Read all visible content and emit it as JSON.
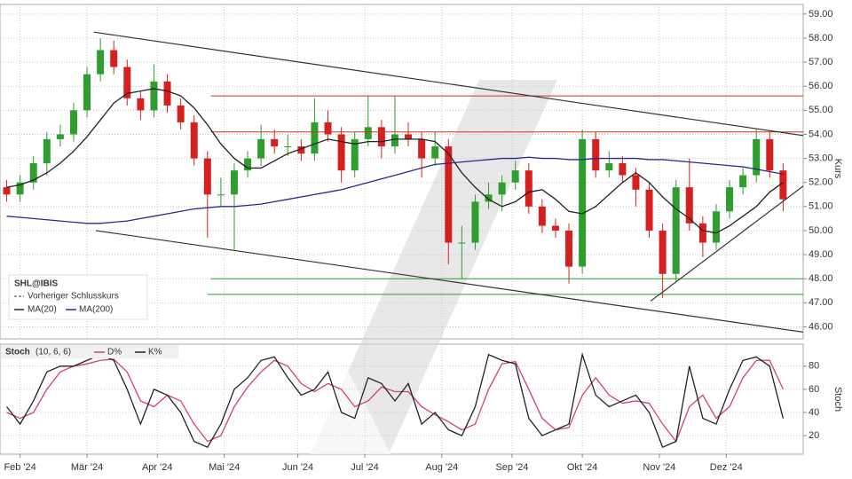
{
  "chart_data": [
    {
      "type": "candlestick",
      "legend_title": "SHL@IBIS",
      "legend_entries": [
        "Vorheriger Schlusskurs"
      ],
      "y_label": "Kurs",
      "xlim": [
        0,
        240
      ],
      "ylim": [
        45.5,
        59.4
      ],
      "yticks": [
        {
          "value": 46,
          "label": "46.00"
        },
        {
          "value": 47,
          "label": "47.00"
        },
        {
          "value": 48,
          "label": "48.00"
        },
        {
          "value": 49,
          "label": "49.00"
        },
        {
          "value": 50,
          "label": "50.00"
        },
        {
          "value": 51,
          "label": "51.00"
        },
        {
          "value": 52,
          "label": "52.00"
        },
        {
          "value": 53,
          "label": "53.00"
        },
        {
          "value": 54,
          "label": "54.00"
        },
        {
          "value": 55,
          "label": "55.00"
        },
        {
          "value": 56,
          "label": "56.00"
        },
        {
          "value": 57,
          "label": "57.00"
        },
        {
          "value": 58,
          "label": "58.00"
        },
        {
          "value": 59,
          "label": "59.00"
        }
      ],
      "grid": true,
      "up_color": "#2e9e2e",
      "down_color": "#d62020",
      "x": [
        2,
        6,
        10,
        14,
        18,
        22,
        26,
        30,
        34,
        38,
        42,
        46,
        50,
        54,
        58,
        62,
        66,
        70,
        74,
        78,
        82,
        86,
        90,
        94,
        98,
        102,
        106,
        110,
        114,
        118,
        122,
        126,
        130,
        134,
        138,
        142,
        146,
        150,
        154,
        158,
        162,
        166,
        170,
        174,
        178,
        182,
        186,
        190,
        194,
        198,
        202,
        206,
        210,
        214,
        218,
        222,
        226,
        230,
        234
      ],
      "open": [
        51.8,
        51.5,
        52.0,
        52.8,
        53.8,
        54.0,
        55.0,
        56.5,
        57.5,
        56.8,
        55.5,
        55.0,
        56.2,
        55.2,
        54.5,
        53.0,
        51.5,
        51.5,
        52.5,
        53.0,
        53.8,
        53.5,
        53.5,
        53.2,
        54.5,
        54.0,
        52.5,
        53.8,
        54.3,
        53.5,
        54.0,
        53.8,
        53.0,
        53.5,
        49.5,
        49.5,
        51.2,
        51.5,
        52.0,
        52.5,
        51.0,
        50.2,
        50.0,
        48.5,
        53.8,
        52.5,
        52.8,
        52.3,
        51.7,
        50.0,
        48.2,
        51.8,
        50.3,
        49.5,
        50.8,
        51.8,
        52.3,
        53.8,
        52.5
      ],
      "high": [
        52.1,
        52.3,
        53.1,
        54.1,
        54.4,
        55.3,
        56.8,
        58.0,
        57.9,
        57.1,
        55.8,
        56.9,
        56.5,
        55.5,
        54.8,
        53.3,
        52.2,
        52.8,
        53.3,
        54.4,
        54.2,
        54.0,
        53.8,
        55.5,
        55.0,
        54.3,
        54.1,
        55.6,
        54.6,
        55.6,
        54.5,
        54.1,
        54.1,
        53.8,
        50.2,
        51.5,
        52.0,
        52.3,
        52.9,
        52.8,
        51.3,
        50.5,
        50.3,
        54.2,
        54.1,
        53.3,
        53.1,
        52.6,
        52.0,
        50.3,
        52.1,
        53.0,
        50.6,
        51.1,
        52.1,
        52.6,
        54.2,
        54.1,
        52.8
      ],
      "low": [
        51.2,
        51.2,
        51.7,
        52.3,
        53.5,
        53.7,
        54.7,
        56.2,
        56.5,
        55.2,
        54.6,
        54.7,
        54.9,
        54.2,
        52.7,
        49.7,
        51.0,
        49.2,
        52.2,
        52.7,
        53.2,
        53.1,
        52.9,
        52.9,
        53.7,
        52.0,
        52.2,
        53.5,
        53.0,
        53.2,
        53.5,
        52.2,
        52.7,
        48.6,
        48.0,
        49.2,
        50.9,
        50.8,
        51.7,
        50.7,
        49.9,
        49.7,
        47.8,
        48.2,
        52.2,
        52.2,
        52.0,
        51.0,
        49.7,
        47.2,
        47.9,
        50.0,
        48.9,
        49.2,
        50.5,
        51.5,
        52.0,
        52.2,
        50.8
      ],
      "close": [
        51.5,
        52.0,
        52.8,
        53.8,
        54.0,
        55.0,
        56.5,
        57.5,
        56.8,
        55.5,
        55.0,
        56.2,
        55.2,
        54.5,
        53.0,
        51.5,
        51.5,
        52.5,
        53.0,
        53.8,
        53.5,
        53.5,
        53.2,
        54.5,
        54.0,
        52.5,
        53.8,
        54.3,
        53.5,
        54.0,
        53.8,
        53.0,
        53.5,
        49.5,
        49.5,
        51.2,
        51.5,
        52.0,
        52.5,
        51.0,
        50.2,
        50.0,
        48.5,
        53.8,
        52.5,
        52.8,
        52.3,
        51.7,
        50.0,
        48.2,
        51.8,
        50.3,
        49.5,
        50.8,
        51.8,
        52.3,
        53.8,
        52.5,
        51.3
      ],
      "series": [
        {
          "name": "MA(20)",
          "color": "#222222",
          "values": [
            51.8,
            51.9,
            52.1,
            52.4,
            52.8,
            53.3,
            53.9,
            54.6,
            55.3,
            55.7,
            55.8,
            55.9,
            55.8,
            55.6,
            55.1,
            54.4,
            53.6,
            53.0,
            52.6,
            52.6,
            52.9,
            53.2,
            53.4,
            53.6,
            53.8,
            53.7,
            53.6,
            53.7,
            53.7,
            53.8,
            53.8,
            53.8,
            53.7,
            53.2,
            52.4,
            51.8,
            51.3,
            51.0,
            51.2,
            51.6,
            51.7,
            51.3,
            50.8,
            50.7,
            51.0,
            51.5,
            52.0,
            52.4,
            52.0,
            51.4,
            50.9,
            50.5,
            50.0,
            49.9,
            50.2,
            50.6,
            51.0,
            51.6,
            52.0
          ]
        },
        {
          "name": "MA(200)",
          "color": "#2a2a8a",
          "values": [
            50.6,
            50.55,
            50.5,
            50.45,
            50.4,
            50.35,
            50.3,
            50.3,
            50.35,
            50.4,
            50.5,
            50.6,
            50.7,
            50.8,
            50.9,
            50.95,
            51.0,
            51.0,
            51.05,
            51.1,
            51.2,
            51.3,
            51.4,
            51.5,
            51.6,
            51.7,
            51.85,
            52.0,
            52.15,
            52.3,
            52.45,
            52.6,
            52.75,
            52.8,
            52.85,
            52.9,
            52.95,
            53.0,
            53.0,
            53.05,
            53.0,
            53.0,
            52.95,
            52.95,
            53.0,
            53.0,
            53.0,
            53.0,
            52.95,
            52.95,
            52.9,
            52.85,
            52.8,
            52.75,
            52.7,
            52.65,
            52.55,
            52.45,
            52.35
          ]
        }
      ],
      "trendlines": [
        {
          "x": [
            28,
            240
          ],
          "y": [
            58.25,
            53.95
          ],
          "color": "#333333"
        },
        {
          "x": [
            28.6,
            240
          ],
          "y": [
            50.0,
            45.78
          ],
          "color": "#333333"
        },
        {
          "x": [
            194.4,
            240
          ],
          "y": [
            47.07,
            51.85
          ],
          "color": "#333333"
        }
      ],
      "hlines": [
        {
          "y": 55.6,
          "x": [
            63,
            240
          ],
          "color": "#d03020"
        },
        {
          "y": 54.1,
          "x": [
            63,
            240
          ],
          "color": "#d03020"
        },
        {
          "y": 48.0,
          "x": [
            63,
            240
          ],
          "color": "#2e9e2e"
        },
        {
          "y": 47.35,
          "x": [
            62,
            240
          ],
          "color": "#2e9e2e"
        }
      ]
    },
    {
      "type": "line",
      "indicator": "Stoch",
      "params": "(10, 6, 6)",
      "y_label": "Stoch",
      "xlim": [
        0,
        240
      ],
      "ylim": [
        4,
        99
      ],
      "yticks": [
        20,
        40,
        60,
        80
      ],
      "grid": true,
      "xticks": [
        {
          "value": 6,
          "label": "Feb '24"
        },
        {
          "value": 26,
          "label": "Mär '24"
        },
        {
          "value": 47,
          "label": "Apr '24"
        },
        {
          "value": 67,
          "label": "Mai '24"
        },
        {
          "value": 89,
          "label": "Jun '24"
        },
        {
          "value": 109,
          "label": "Jul '24"
        },
        {
          "value": 132,
          "label": "Aug '24"
        },
        {
          "value": 153,
          "label": "Sep '24"
        },
        {
          "value": 174,
          "label": "Okt '24"
        },
        {
          "value": 197,
          "label": "Nov '24"
        },
        {
          "value": 217,
          "label": "Dez '24"
        }
      ],
      "x": [
        2,
        6,
        10,
        14,
        18,
        22,
        26,
        30,
        34,
        38,
        42,
        46,
        50,
        54,
        58,
        62,
        66,
        70,
        74,
        78,
        82,
        86,
        90,
        94,
        98,
        102,
        106,
        110,
        114,
        118,
        122,
        126,
        130,
        134,
        138,
        142,
        146,
        150,
        154,
        158,
        162,
        166,
        170,
        174,
        178,
        182,
        186,
        190,
        194,
        198,
        202,
        206,
        210,
        214,
        218,
        222,
        226,
        230,
        234
      ],
      "series": [
        {
          "name": "D%",
          "color": "#d0407a",
          "values": [
            40,
            35,
            40,
            60,
            75,
            80,
            82,
            85,
            86,
            75,
            50,
            45,
            55,
            50,
            30,
            15,
            20,
            45,
            62,
            75,
            85,
            80,
            65,
            58,
            65,
            60,
            45,
            50,
            62,
            58,
            58,
            45,
            38,
            32,
            25,
            30,
            60,
            82,
            84,
            60,
            35,
            25,
            27,
            55,
            70,
            55,
            48,
            50,
            48,
            30,
            15,
            45,
            55,
            35,
            45,
            70,
            85,
            85,
            60
          ]
        },
        {
          "name": "K%",
          "color": "#222222",
          "values": [
            45,
            30,
            50,
            75,
            80,
            80,
            85,
            90,
            85,
            60,
            30,
            60,
            55,
            40,
            15,
            10,
            30,
            60,
            70,
            85,
            88,
            70,
            55,
            60,
            75,
            40,
            35,
            70,
            65,
            50,
            65,
            30,
            40,
            25,
            20,
            45,
            90,
            85,
            82,
            35,
            20,
            25,
            30,
            90,
            55,
            45,
            50,
            55,
            40,
            10,
            15,
            80,
            35,
            30,
            60,
            85,
            88,
            80,
            35
          ]
        }
      ]
    }
  ]
}
